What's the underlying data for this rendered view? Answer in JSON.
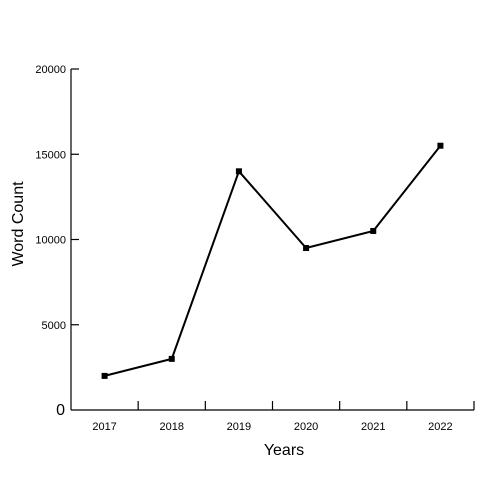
{
  "chart_data": {
    "type": "line",
    "title": "",
    "xlabel": "Years",
    "ylabel": "Word Count",
    "categories": [
      "2017",
      "2018",
      "2019",
      "2020",
      "2021",
      "2022"
    ],
    "series": [
      {
        "values": [
          2000,
          3000,
          14000,
          9500,
          10500,
          15500
        ]
      }
    ],
    "ylim": [
      0,
      20000
    ],
    "yticks": [
      {
        "value": 0,
        "label": "0"
      },
      {
        "value": 5000,
        "label": "5000"
      },
      {
        "value": 10000,
        "label": "10000"
      },
      {
        "value": 15000,
        "label": "15000"
      },
      {
        "value": 20000,
        "label": "20000"
      }
    ],
    "grid": false,
    "legend": "none",
    "line_color": "#000000",
    "marker": "square"
  }
}
